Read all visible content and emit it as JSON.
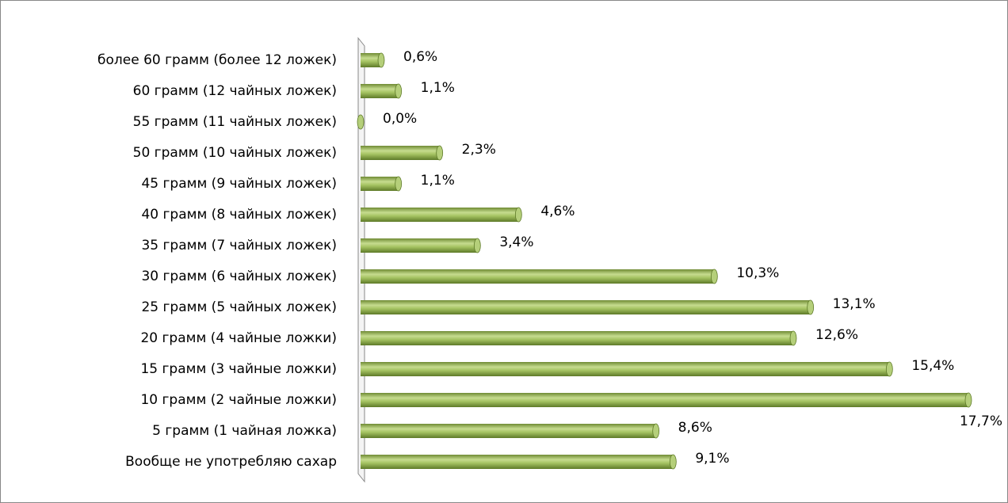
{
  "chart_data": {
    "type": "bar",
    "orientation": "horizontal",
    "categories": [
      "более 60 грамм (более 12 ложек)",
      "60 грамм (12 чайных ложек)",
      "55 грамм (11 чайных ложек)",
      "50 грамм (10 чайных ложек)",
      "45 грамм (9 чайных ложек)",
      "40 грамм (8 чайных ложек)",
      "35 грамм (7 чайных ложек)",
      "30 грамм (6 чайных ложек)",
      "25 грамм (5 чайных ложек)",
      "20 грамм (4 чайные ложки)",
      "15 грамм (3 чайные ложки)",
      "10 грамм (2 чайные ложки)",
      "5 грамм (1 чайная ложка)",
      "Вообще не употребляю сахар"
    ],
    "values": [
      0.6,
      1.1,
      0.0,
      2.3,
      1.1,
      4.6,
      3.4,
      10.3,
      13.1,
      12.6,
      15.4,
      17.7,
      8.6,
      9.1
    ],
    "value_labels": [
      "0,6%",
      "1,1%",
      "0,0%",
      "2,3%",
      "1,1%",
      "4,6%",
      "3,4%",
      "10,3%",
      "13,1%",
      "12,6%",
      "15,4%",
      "17,7%",
      "8,6%",
      "9,1%"
    ],
    "color": "#9bbb59"
  }
}
